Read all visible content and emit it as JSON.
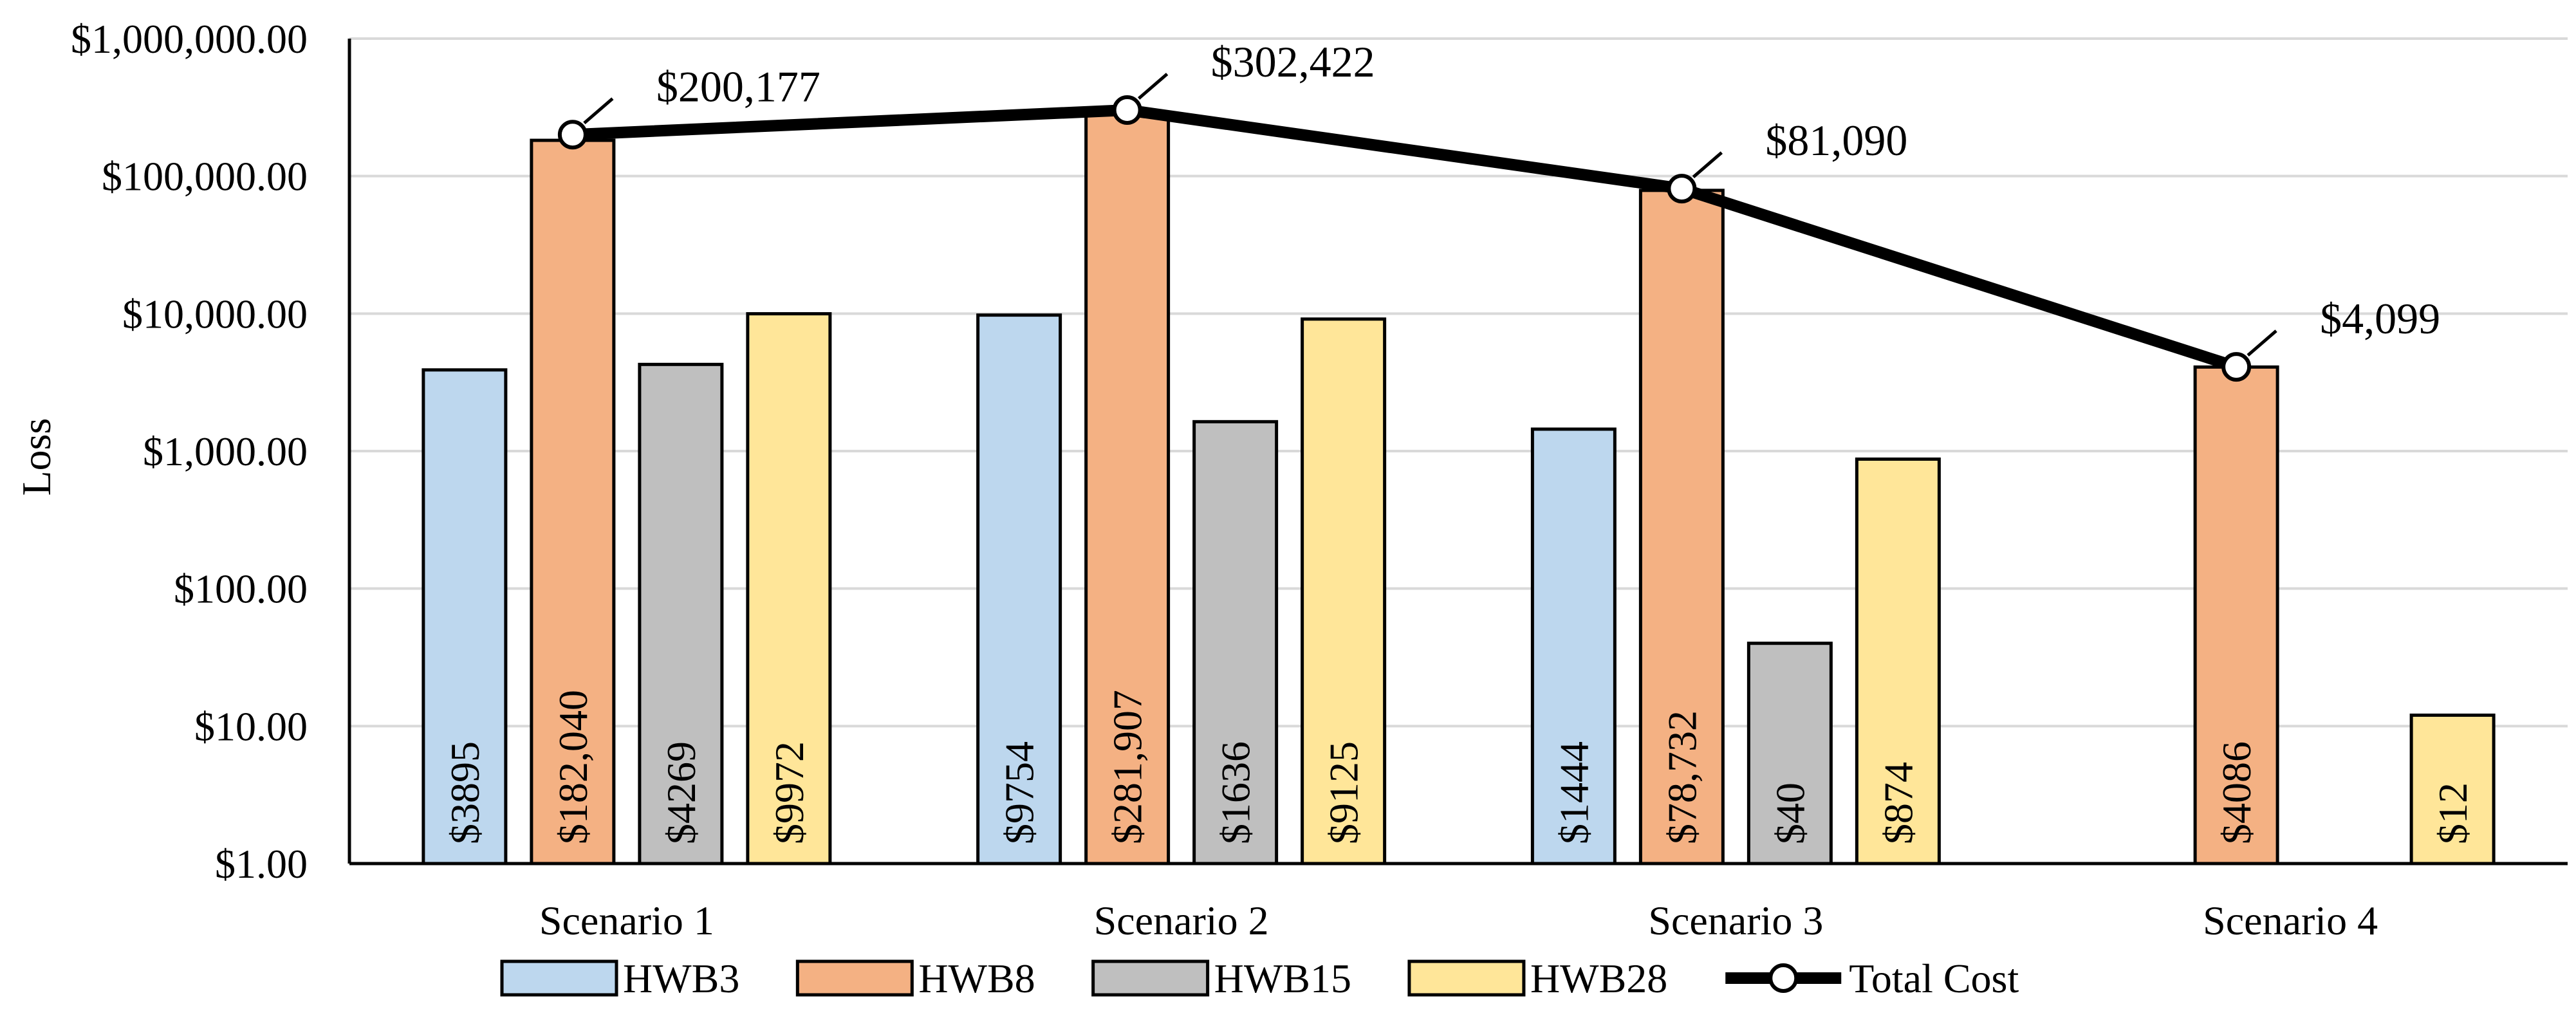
{
  "chart_data": {
    "type": "bar",
    "title": "",
    "xlabel": "",
    "ylabel": "Loss",
    "yscale": "log",
    "ylim": [
      1,
      1000000
    ],
    "yticks": [
      1,
      10,
      100,
      1000,
      10000,
      100000,
      1000000
    ],
    "ytick_labels": [
      "$1.00",
      "$10.00",
      "$100.00",
      "$1,000.00",
      "$10,000.00",
      "$100,000.00",
      "$1,000,000.00"
    ],
    "categories": [
      "Scenario 1",
      "Scenario 2",
      "Scenario 3",
      "Scenario 4"
    ],
    "series": [
      {
        "name": "HWB3",
        "color": "#bdd7ee",
        "values": [
          3895,
          9754,
          1444,
          null
        ],
        "labels": [
          "$3895",
          "$9754",
          "$1444",
          ""
        ]
      },
      {
        "name": "HWB8",
        "color": "#f4b183",
        "values": [
          182040,
          281907,
          78732,
          4086
        ],
        "labels": [
          "$182,040",
          "$281,907",
          "$78,732",
          "$4086"
        ]
      },
      {
        "name": "HWB15",
        "color": "#bfbfbf",
        "values": [
          4269,
          1636,
          40,
          null
        ],
        "labels": [
          "$4269",
          "$1636",
          "$40",
          ""
        ]
      },
      {
        "name": "HWB28",
        "color": "#ffe699",
        "values": [
          9972,
          9125,
          874,
          12
        ],
        "labels": [
          "$9972",
          "$9125",
          "$874",
          "$12"
        ]
      }
    ],
    "line_series": {
      "name": "Total Cost",
      "color": "#000000",
      "values": [
        200177,
        302422,
        81090,
        4099
      ],
      "labels": [
        "$200,177",
        "$302,422",
        "$81,090",
        "$4,099"
      ]
    },
    "legend_position": "bottom",
    "grid": true
  }
}
